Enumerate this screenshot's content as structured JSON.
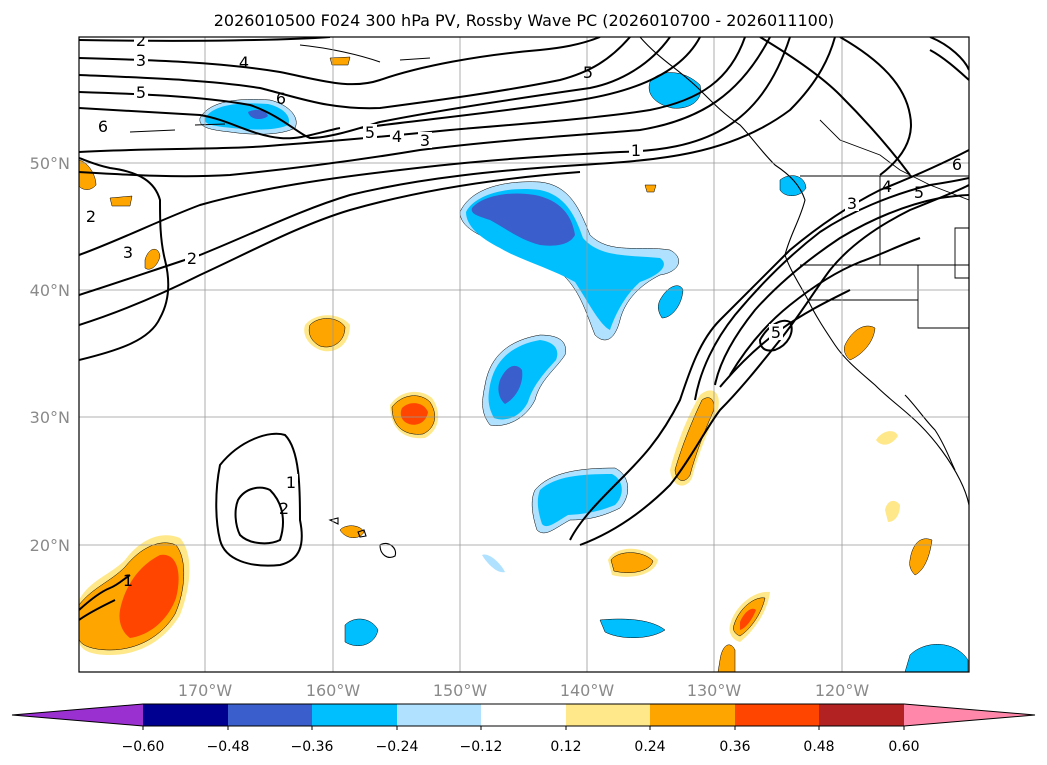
{
  "title": "2026010500 F024 300 hPa PV, Rossby Wave PC (2026010700 - 2026011100)",
  "lat_labels": [
    "50°N",
    "40°N",
    "30°N",
    "20°N"
  ],
  "lon_labels": [
    "170°W",
    "160°W",
    "150°W",
    "140°W",
    "130°W",
    "120°W"
  ],
  "colorbar": {
    "ticks": [
      "−0.60",
      "−0.48",
      "−0.36",
      "−0.24",
      "−0.12",
      "0.12",
      "0.24",
      "0.36",
      "0.48",
      "0.60"
    ],
    "colors": [
      "#9b30d0",
      "#000090",
      "#3a5fcd",
      "#00bfff",
      "#b0e2ff",
      "#ffffff",
      "#ffe88a",
      "#ffa500",
      "#ff4500",
      "#b22222",
      "#ff88aa"
    ]
  },
  "contour_labels": {
    "c1": "2",
    "c2": "3",
    "c3": "4",
    "c4": "5",
    "c5": "6",
    "c6": "5",
    "c7": "5",
    "c8": "4",
    "c9": "3",
    "c10": "1",
    "c11": "2",
    "c12": "3",
    "c13": "2",
    "c14": "1",
    "c15": "2",
    "c16": "5",
    "c17": "3",
    "c18": "4",
    "c19": "5",
    "c20": "6",
    "c21": "6",
    "c22": "1"
  }
}
